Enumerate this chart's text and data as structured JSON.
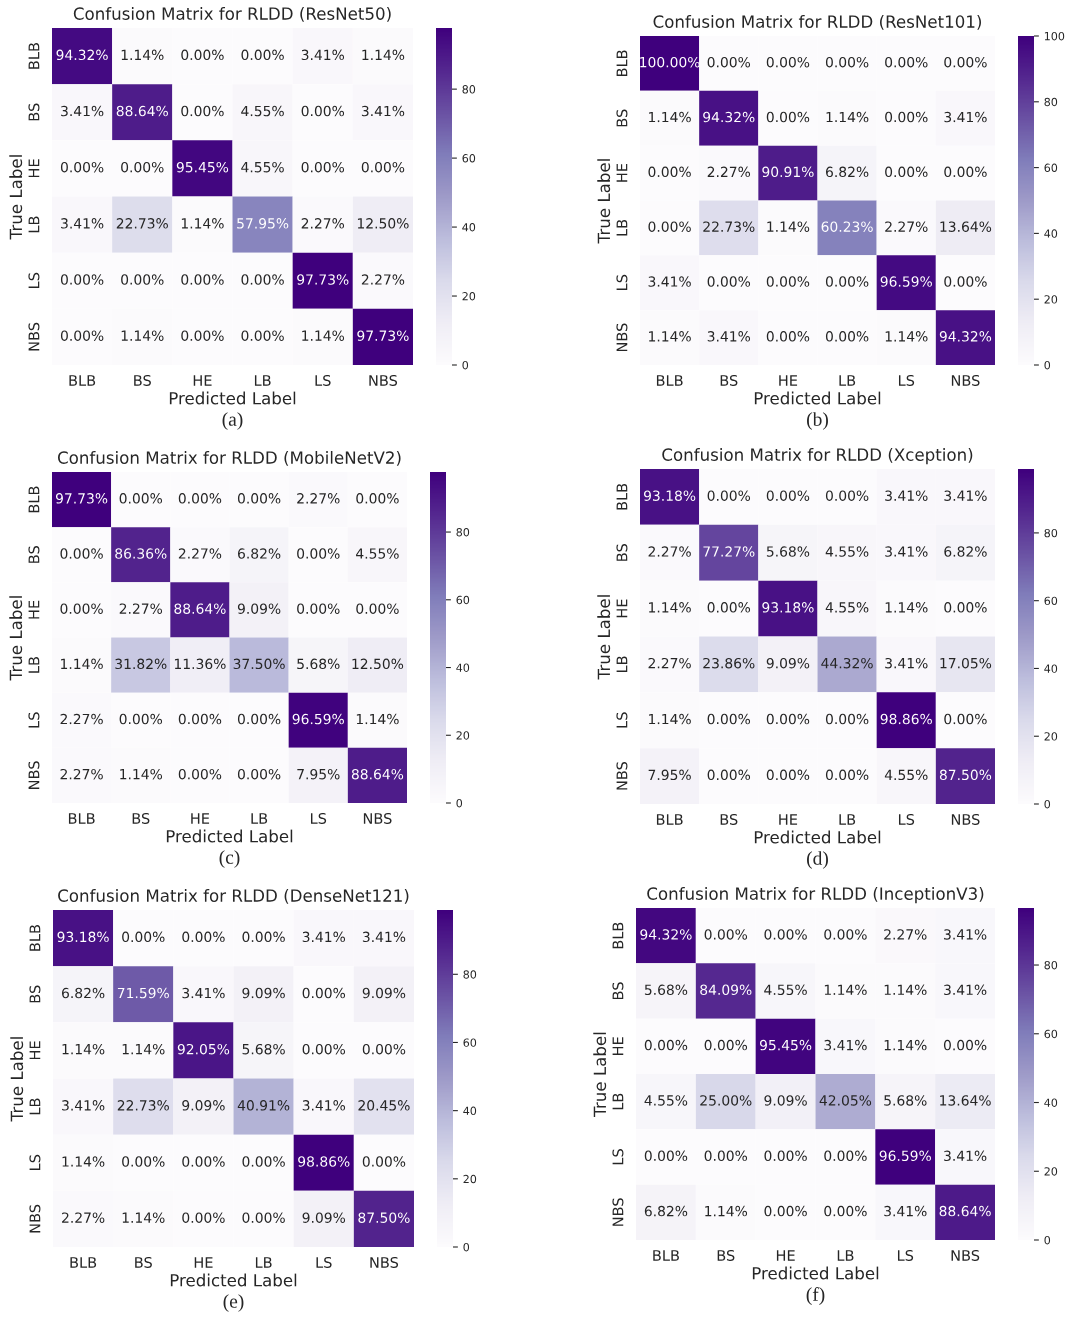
{
  "chart_data": [
    {
      "type": "heatmap",
      "title": "Confusion Matrix for RLDD (ResNet50)",
      "xlabel": "Predicted Label",
      "ylabel": "True Label",
      "categories": [
        "BLB",
        "BS",
        "HE",
        "LB",
        "LS",
        "NBS"
      ],
      "y_categories": [
        "BLB",
        "BS",
        "HE",
        "LB",
        "LS",
        "NBS"
      ],
      "cells": [
        [
          94.32,
          1.14,
          0.0,
          0.0,
          3.41,
          1.14
        ],
        [
          3.41,
          88.64,
          0.0,
          4.55,
          0.0,
          3.41
        ],
        [
          0.0,
          0.0,
          95.45,
          4.55,
          0.0,
          0.0
        ],
        [
          3.41,
          22.73,
          1.14,
          57.95,
          2.27,
          12.5
        ],
        [
          0.0,
          0.0,
          0.0,
          0.0,
          97.73,
          2.27
        ],
        [
          0.0,
          1.14,
          0.0,
          0.0,
          1.14,
          97.73
        ]
      ],
      "cell_labels": [
        [
          "94.32%",
          "1.14%",
          "0.00%",
          "0.00%",
          "3.41%",
          "1.14%"
        ],
        [
          "3.41%",
          "88.64%",
          "0.00%",
          "4.55%",
          "0.00%",
          "3.41%"
        ],
        [
          "0.00%",
          "0.00%",
          "95.45%",
          "4.55%",
          "0.00%",
          "0.00%"
        ],
        [
          "3.41%",
          "22.73%",
          "1.14%",
          "57.95%",
          "2.27%",
          "12.50%"
        ],
        [
          "0.00%",
          "0.00%",
          "0.00%",
          "0.00%",
          "97.73%",
          "2.27%"
        ],
        [
          "0.00%",
          "1.14%",
          "0.00%",
          "0.00%",
          "1.14%",
          "97.73%"
        ]
      ],
      "clim": [
        0,
        97.73
      ],
      "cticks": [
        0,
        20,
        40,
        60,
        80
      ],
      "annotations": [
        "(a)"
      ]
    },
    {
      "type": "heatmap",
      "title": "Confusion Matrix for RLDD (ResNet101)",
      "xlabel": "Predicted Label",
      "ylabel": "True Label",
      "categories": [
        "BLB",
        "BS",
        "HE",
        "LB",
        "LS",
        "NBS"
      ],
      "y_categories": [
        "BLB",
        "BS",
        "HE",
        "LB",
        "LS",
        "NBS"
      ],
      "cells": [
        [
          100.0,
          0.0,
          0.0,
          0.0,
          0.0,
          0.0
        ],
        [
          1.14,
          94.32,
          0.0,
          1.14,
          0.0,
          3.41
        ],
        [
          0.0,
          2.27,
          90.91,
          6.82,
          0.0,
          0.0
        ],
        [
          0.0,
          22.73,
          1.14,
          60.23,
          2.27,
          13.64
        ],
        [
          3.41,
          0.0,
          0.0,
          0.0,
          96.59,
          0.0
        ],
        [
          1.14,
          3.41,
          0.0,
          0.0,
          1.14,
          94.32
        ]
      ],
      "cell_labels": [
        [
          "100.00%",
          "0.00%",
          "0.00%",
          "0.00%",
          "0.00%",
          "0.00%"
        ],
        [
          "1.14%",
          "94.32%",
          "0.00%",
          "1.14%",
          "0.00%",
          "3.41%"
        ],
        [
          "0.00%",
          "2.27%",
          "90.91%",
          "6.82%",
          "0.00%",
          "0.00%"
        ],
        [
          "0.00%",
          "22.73%",
          "1.14%",
          "60.23%",
          "2.27%",
          "13.64%"
        ],
        [
          "3.41%",
          "0.00%",
          "0.00%",
          "0.00%",
          "96.59%",
          "0.00%"
        ],
        [
          "1.14%",
          "3.41%",
          "0.00%",
          "0.00%",
          "1.14%",
          "94.32%"
        ]
      ],
      "clim": [
        0,
        100
      ],
      "cticks": [
        0,
        20,
        40,
        60,
        80,
        100
      ],
      "annotations": [
        "(b)"
      ]
    },
    {
      "type": "heatmap",
      "title": "Confusion Matrix for RLDD (MobileNetV2)",
      "xlabel": "Predicted Label",
      "ylabel": "True Label",
      "categories": [
        "BLB",
        "BS",
        "HE",
        "LB",
        "LS",
        "NBS"
      ],
      "y_categories": [
        "BLB",
        "BS",
        "HE",
        "LB",
        "LS",
        "NBS"
      ],
      "cells": [
        [
          97.73,
          0.0,
          0.0,
          0.0,
          2.27,
          0.0
        ],
        [
          0.0,
          86.36,
          2.27,
          6.82,
          0.0,
          4.55
        ],
        [
          0.0,
          2.27,
          88.64,
          9.09,
          0.0,
          0.0
        ],
        [
          1.14,
          31.82,
          11.36,
          37.5,
          5.68,
          12.5
        ],
        [
          2.27,
          0.0,
          0.0,
          0.0,
          96.59,
          1.14
        ],
        [
          2.27,
          1.14,
          0.0,
          0.0,
          7.95,
          88.64
        ]
      ],
      "cell_labels": [
        [
          "97.73%",
          "0.00%",
          "0.00%",
          "0.00%",
          "2.27%",
          "0.00%"
        ],
        [
          "0.00%",
          "86.36%",
          "2.27%",
          "6.82%",
          "0.00%",
          "4.55%"
        ],
        [
          "0.00%",
          "2.27%",
          "88.64%",
          "9.09%",
          "0.00%",
          "0.00%"
        ],
        [
          "1.14%",
          "31.82%",
          "11.36%",
          "37.50%",
          "5.68%",
          "12.50%"
        ],
        [
          "2.27%",
          "0.00%",
          "0.00%",
          "0.00%",
          "96.59%",
          "1.14%"
        ],
        [
          "2.27%",
          "1.14%",
          "0.00%",
          "0.00%",
          "7.95%",
          "88.64%"
        ]
      ],
      "clim": [
        0,
        97.73
      ],
      "cticks": [
        0,
        20,
        40,
        60,
        80
      ],
      "annotations": [
        "(c)"
      ]
    },
    {
      "type": "heatmap",
      "title": "Confusion Matrix for RLDD (Xception)",
      "xlabel": "Predicted Label",
      "ylabel": "True Label",
      "categories": [
        "BLB",
        "BS",
        "HE",
        "LB",
        "LS",
        "NBS"
      ],
      "y_categories": [
        "BLB",
        "BS",
        "HE",
        "LB",
        "LS",
        "NBS"
      ],
      "cells": [
        [
          93.18,
          0.0,
          0.0,
          0.0,
          3.41,
          3.41
        ],
        [
          2.27,
          77.27,
          5.68,
          4.55,
          3.41,
          6.82
        ],
        [
          1.14,
          0.0,
          93.18,
          4.55,
          1.14,
          0.0
        ],
        [
          2.27,
          23.86,
          9.09,
          44.32,
          3.41,
          17.05
        ],
        [
          1.14,
          0.0,
          0.0,
          0.0,
          98.86,
          0.0
        ],
        [
          7.95,
          0.0,
          0.0,
          0.0,
          4.55,
          87.5
        ]
      ],
      "cell_labels": [
        [
          "93.18%",
          "0.00%",
          "0.00%",
          "0.00%",
          "3.41%",
          "3.41%"
        ],
        [
          "2.27%",
          "77.27%",
          "5.68%",
          "4.55%",
          "3.41%",
          "6.82%"
        ],
        [
          "1.14%",
          "0.00%",
          "93.18%",
          "4.55%",
          "1.14%",
          "0.00%"
        ],
        [
          "2.27%",
          "23.86%",
          "9.09%",
          "44.32%",
          "3.41%",
          "17.05%"
        ],
        [
          "1.14%",
          "0.00%",
          "0.00%",
          "0.00%",
          "98.86%",
          "0.00%"
        ],
        [
          "7.95%",
          "0.00%",
          "0.00%",
          "0.00%",
          "4.55%",
          "87.50%"
        ]
      ],
      "clim": [
        0,
        98.86
      ],
      "cticks": [
        0,
        20,
        40,
        60,
        80
      ],
      "annotations": [
        "(d)"
      ]
    },
    {
      "type": "heatmap",
      "title": "Confusion Matrix for RLDD (DenseNet121)",
      "xlabel": "Predicted Label",
      "ylabel": "True Label",
      "categories": [
        "BLB",
        "BS",
        "HE",
        "LB",
        "LS",
        "NBS"
      ],
      "y_categories": [
        "BLB",
        "BS",
        "HE",
        "LB",
        "LS",
        "NBS"
      ],
      "cells": [
        [
          93.18,
          0.0,
          0.0,
          0.0,
          3.41,
          3.41
        ],
        [
          6.82,
          71.59,
          3.41,
          9.09,
          0.0,
          9.09
        ],
        [
          1.14,
          1.14,
          92.05,
          5.68,
          0.0,
          0.0
        ],
        [
          3.41,
          22.73,
          9.09,
          40.91,
          3.41,
          20.45
        ],
        [
          1.14,
          0.0,
          0.0,
          0.0,
          98.86,
          0.0
        ],
        [
          2.27,
          1.14,
          0.0,
          0.0,
          9.09,
          87.5
        ]
      ],
      "cell_labels": [
        [
          "93.18%",
          "0.00%",
          "0.00%",
          "0.00%",
          "3.41%",
          "3.41%"
        ],
        [
          "6.82%",
          "71.59%",
          "3.41%",
          "9.09%",
          "0.00%",
          "9.09%"
        ],
        [
          "1.14%",
          "1.14%",
          "92.05%",
          "5.68%",
          "0.00%",
          "0.00%"
        ],
        [
          "3.41%",
          "22.73%",
          "9.09%",
          "40.91%",
          "3.41%",
          "20.45%"
        ],
        [
          "1.14%",
          "0.00%",
          "0.00%",
          "0.00%",
          "98.86%",
          "0.00%"
        ],
        [
          "2.27%",
          "1.14%",
          "0.00%",
          "0.00%",
          "9.09%",
          "87.50%"
        ]
      ],
      "clim": [
        0,
        98.86
      ],
      "cticks": [
        0,
        20,
        40,
        60,
        80
      ],
      "annotations": [
        "(e)"
      ]
    },
    {
      "type": "heatmap",
      "title": "Confusion Matrix for RLDD (InceptionV3)",
      "xlabel": "Predicted Label",
      "ylabel": "True Label",
      "categories": [
        "BLB",
        "BS",
        "HE",
        "LB",
        "LS",
        "NBS"
      ],
      "y_categories": [
        "BLB",
        "BS",
        "HE",
        "LB",
        "LS",
        "NBS"
      ],
      "cells": [
        [
          94.32,
          0.0,
          0.0,
          0.0,
          2.27,
          3.41
        ],
        [
          5.68,
          84.09,
          4.55,
          1.14,
          1.14,
          3.41
        ],
        [
          0.0,
          0.0,
          95.45,
          3.41,
          1.14,
          0.0
        ],
        [
          4.55,
          25.0,
          9.09,
          42.05,
          5.68,
          13.64
        ],
        [
          0.0,
          0.0,
          0.0,
          0.0,
          96.59,
          3.41
        ],
        [
          6.82,
          1.14,
          0.0,
          0.0,
          3.41,
          88.64
        ]
      ],
      "cell_labels": [
        [
          "94.32%",
          "0.00%",
          "0.00%",
          "0.00%",
          "2.27%",
          "3.41%"
        ],
        [
          "5.68%",
          "84.09%",
          "4.55%",
          "1.14%",
          "1.14%",
          "3.41%"
        ],
        [
          "0.00%",
          "0.00%",
          "95.45%",
          "3.41%",
          "1.14%",
          "0.00%"
        ],
        [
          "4.55%",
          "25.00%",
          "9.09%",
          "42.05%",
          "5.68%",
          "13.64%"
        ],
        [
          "0.00%",
          "0.00%",
          "0.00%",
          "0.00%",
          "96.59%",
          "3.41%"
        ],
        [
          "6.82%",
          "1.14%",
          "0.00%",
          "0.00%",
          "3.41%",
          "88.64%"
        ]
      ],
      "clim": [
        0,
        96.59
      ],
      "cticks": [
        0,
        20,
        40,
        60,
        80
      ],
      "annotations": [
        "(f)"
      ]
    }
  ]
}
